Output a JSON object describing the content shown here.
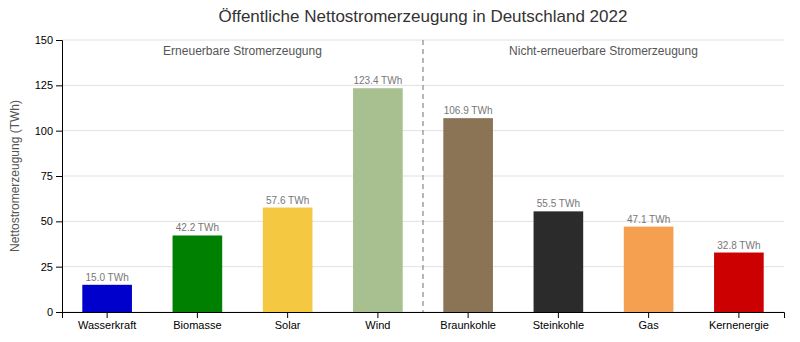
{
  "chart_data": {
    "type": "bar",
    "title": "Öffentliche Nettostromerzeugung in Deutschland 2022",
    "ylabel": "Nettostromerzeugung (TWh)",
    "categories": [
      "Wasserkraft",
      "Biomasse",
      "Solar",
      "Wind",
      "Braunkohle",
      "Steinkohle",
      "Gas",
      "Kernenergie"
    ],
    "values": [
      15.0,
      42.2,
      57.6,
      123.4,
      106.9,
      55.5,
      47.1,
      32.8
    ],
    "value_labels": [
      "15.0 TWh",
      "42.2 TWh",
      "57.6 TWh",
      "123.4 TWh",
      "106.9 TWh",
      "55.5 TWh",
      "47.1 TWh",
      "32.8 TWh"
    ],
    "colors": [
      "#0000cc",
      "#008000",
      "#f5c842",
      "#a8c090",
      "#8B7355",
      "#2b2b2b",
      "#f5a050",
      "#cc0000"
    ],
    "ylim": [
      0,
      150
    ],
    "yticks": [
      0,
      25,
      50,
      75,
      100,
      125,
      150
    ],
    "grid": true,
    "data_labels": true,
    "annotations": [
      "Erneuerbare Stromerzeugung",
      "Nicht-erneuerbare Stromerzeugung"
    ]
  }
}
